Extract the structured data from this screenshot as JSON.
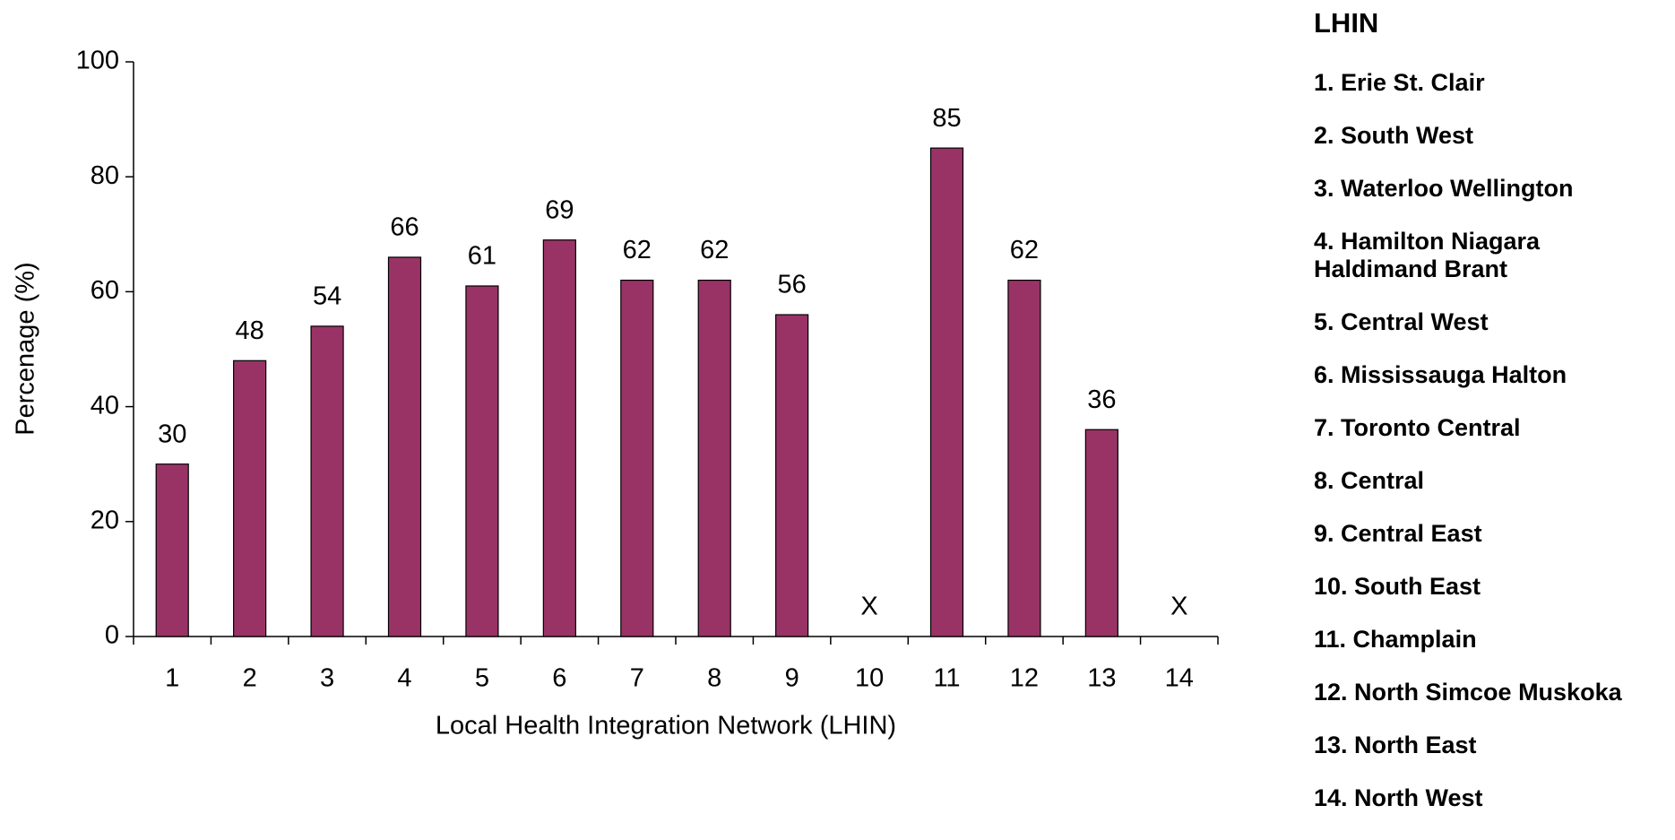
{
  "chart_data": {
    "type": "bar",
    "categories": [
      "1",
      "2",
      "3",
      "4",
      "5",
      "6",
      "7",
      "8",
      "9",
      "10",
      "11",
      "12",
      "13",
      "14"
    ],
    "values": [
      30,
      48,
      54,
      66,
      61,
      69,
      62,
      62,
      56,
      null,
      85,
      62,
      36,
      null
    ],
    "value_labels": [
      "30",
      "48",
      "54",
      "66",
      "61",
      "69",
      "62",
      "62",
      "56",
      "X",
      "85",
      "62",
      "36",
      "X"
    ],
    "color": "#993366",
    "ylim": [
      0,
      100
    ],
    "yticks": [
      0,
      20,
      40,
      60,
      80,
      100
    ],
    "x_label": "Local Health Integration Network (LHIN)",
    "y_label": "Percenage (%)",
    "grid": false,
    "legend_title": "LHIN",
    "legend_items": [
      "1. Erie St. Clair",
      "2. South West",
      "3. Waterloo Wellington",
      "4. Hamilton Niagara Haldimand Brant",
      "5. Central West",
      "6. Mississauga Halton",
      "7. Toronto Central",
      "8. Central",
      "9. Central East",
      "10. South East",
      "11. Champlain",
      "12. North Simcoe Muskoka",
      "13. North East",
      "14. North West"
    ]
  }
}
